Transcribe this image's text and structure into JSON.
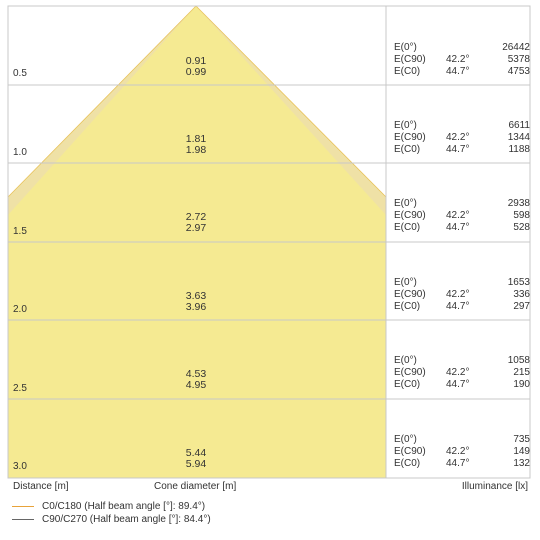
{
  "rows": [
    {
      "distance": "0.5",
      "cone_c0": "0.91",
      "cone_c90": "0.99",
      "e0": "26442",
      "ec90_angle": "42.2°",
      "ec90": "5378",
      "ec0_angle": "44.7°",
      "ec0": "4753"
    },
    {
      "distance": "1.0",
      "cone_c0": "1.81",
      "cone_c90": "1.98",
      "e0": "6611",
      "ec90_angle": "42.2°",
      "ec90": "1344",
      "ec0_angle": "44.7°",
      "ec0": "1188"
    },
    {
      "distance": "1.5",
      "cone_c0": "2.72",
      "cone_c90": "2.97",
      "e0": "2938",
      "ec90_angle": "42.2°",
      "ec90": "598",
      "ec0_angle": "44.7°",
      "ec0": "528"
    },
    {
      "distance": "2.0",
      "cone_c0": "3.63",
      "cone_c90": "3.96",
      "e0": "1653",
      "ec90_angle": "42.2°",
      "ec90": "336",
      "ec0_angle": "44.7°",
      "ec0": "297"
    },
    {
      "distance": "2.5",
      "cone_c0": "4.53",
      "cone_c90": "4.95",
      "e0": "1058",
      "ec90_angle": "42.2°",
      "ec90": "215",
      "ec0_angle": "44.7°",
      "ec0": "190"
    },
    {
      "distance": "3.0",
      "cone_c0": "5.44",
      "cone_c90": "5.94",
      "e0": "735",
      "ec90_angle": "42.2°",
      "ec90": "149",
      "ec0_angle": "44.7°",
      "ec0": "132"
    }
  ],
  "labels": {
    "e0": "E(0°)",
    "ec90": "E(C90)",
    "ec0": "E(C0)"
  },
  "axis": {
    "distance": "Distance [m]",
    "cone": "Cone diameter [m]",
    "illuminance": "Illuminance [lx]"
  },
  "legend": [
    {
      "text": "C0/C180 (Half beam angle [°]: 89.4°)",
      "color": "#e8a33a"
    },
    {
      "text": "C90/C270 (Half beam angle [°]: 84.4°)",
      "color": "#666666"
    }
  ],
  "colors": {
    "cone_fill": "#f5ea92",
    "cone_fill_outer": "#efe1a6",
    "grid": "#c8c8c8"
  }
}
